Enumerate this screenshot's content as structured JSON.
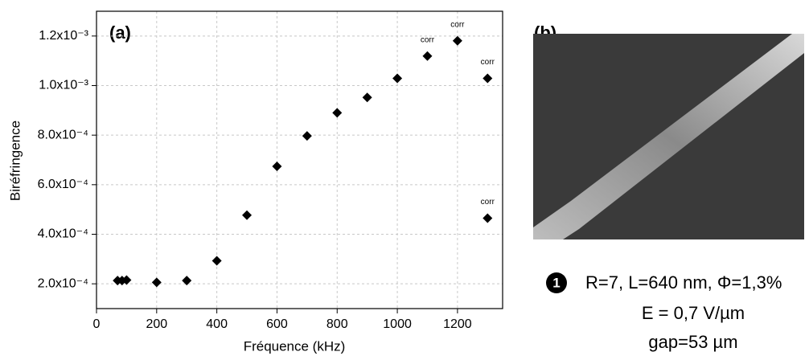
{
  "chart_data": {
    "type": "scatter",
    "panel_label": "(a)",
    "x_label": "Fréquence (kHz)",
    "y_label": "Biréfringence",
    "xlim": [
      0,
      1350
    ],
    "xticks": [
      0,
      200,
      400,
      600,
      800,
      1000,
      1200
    ],
    "ylim": [
      0.0001,
      0.0013
    ],
    "yticks": [
      {
        "value": 0.0002,
        "label": "2.0x10⁻⁴"
      },
      {
        "value": 0.0004,
        "label": "4.0x10⁻⁴"
      },
      {
        "value": 0.0006,
        "label": "6.0x10⁻⁴"
      },
      {
        "value": 0.0008,
        "label": "8.0x10⁻⁴"
      },
      {
        "value": 0.001,
        "label": "1.0x10⁻³"
      },
      {
        "value": 0.0012,
        "label": "1.2x10⁻³"
      }
    ],
    "grid": true,
    "color": "#000000",
    "x": [
      70,
      85,
      100,
      200,
      300,
      400,
      500,
      600,
      700,
      800,
      900,
      1000,
      1100,
      1200,
      1300,
      1300
    ],
    "values": [
      0.000213,
      0.000213,
      0.000215,
      0.000206,
      0.000213,
      0.000293,
      0.000477,
      0.000674,
      0.000797,
      0.00089,
      0.000952,
      0.001029,
      0.001119,
      0.001181,
      0.001029,
      0.000465
    ],
    "point_labels": [
      null,
      null,
      null,
      null,
      null,
      null,
      null,
      null,
      null,
      null,
      null,
      null,
      "corr",
      "corr",
      "corr",
      "corr"
    ]
  },
  "panel_b": {
    "label": "(b)",
    "marker": "1",
    "caption": [
      "R=7, L=640 nm, Φ=1,3%",
      "E = 0,7 V/µm",
      "gap=53 µm"
    ]
  }
}
